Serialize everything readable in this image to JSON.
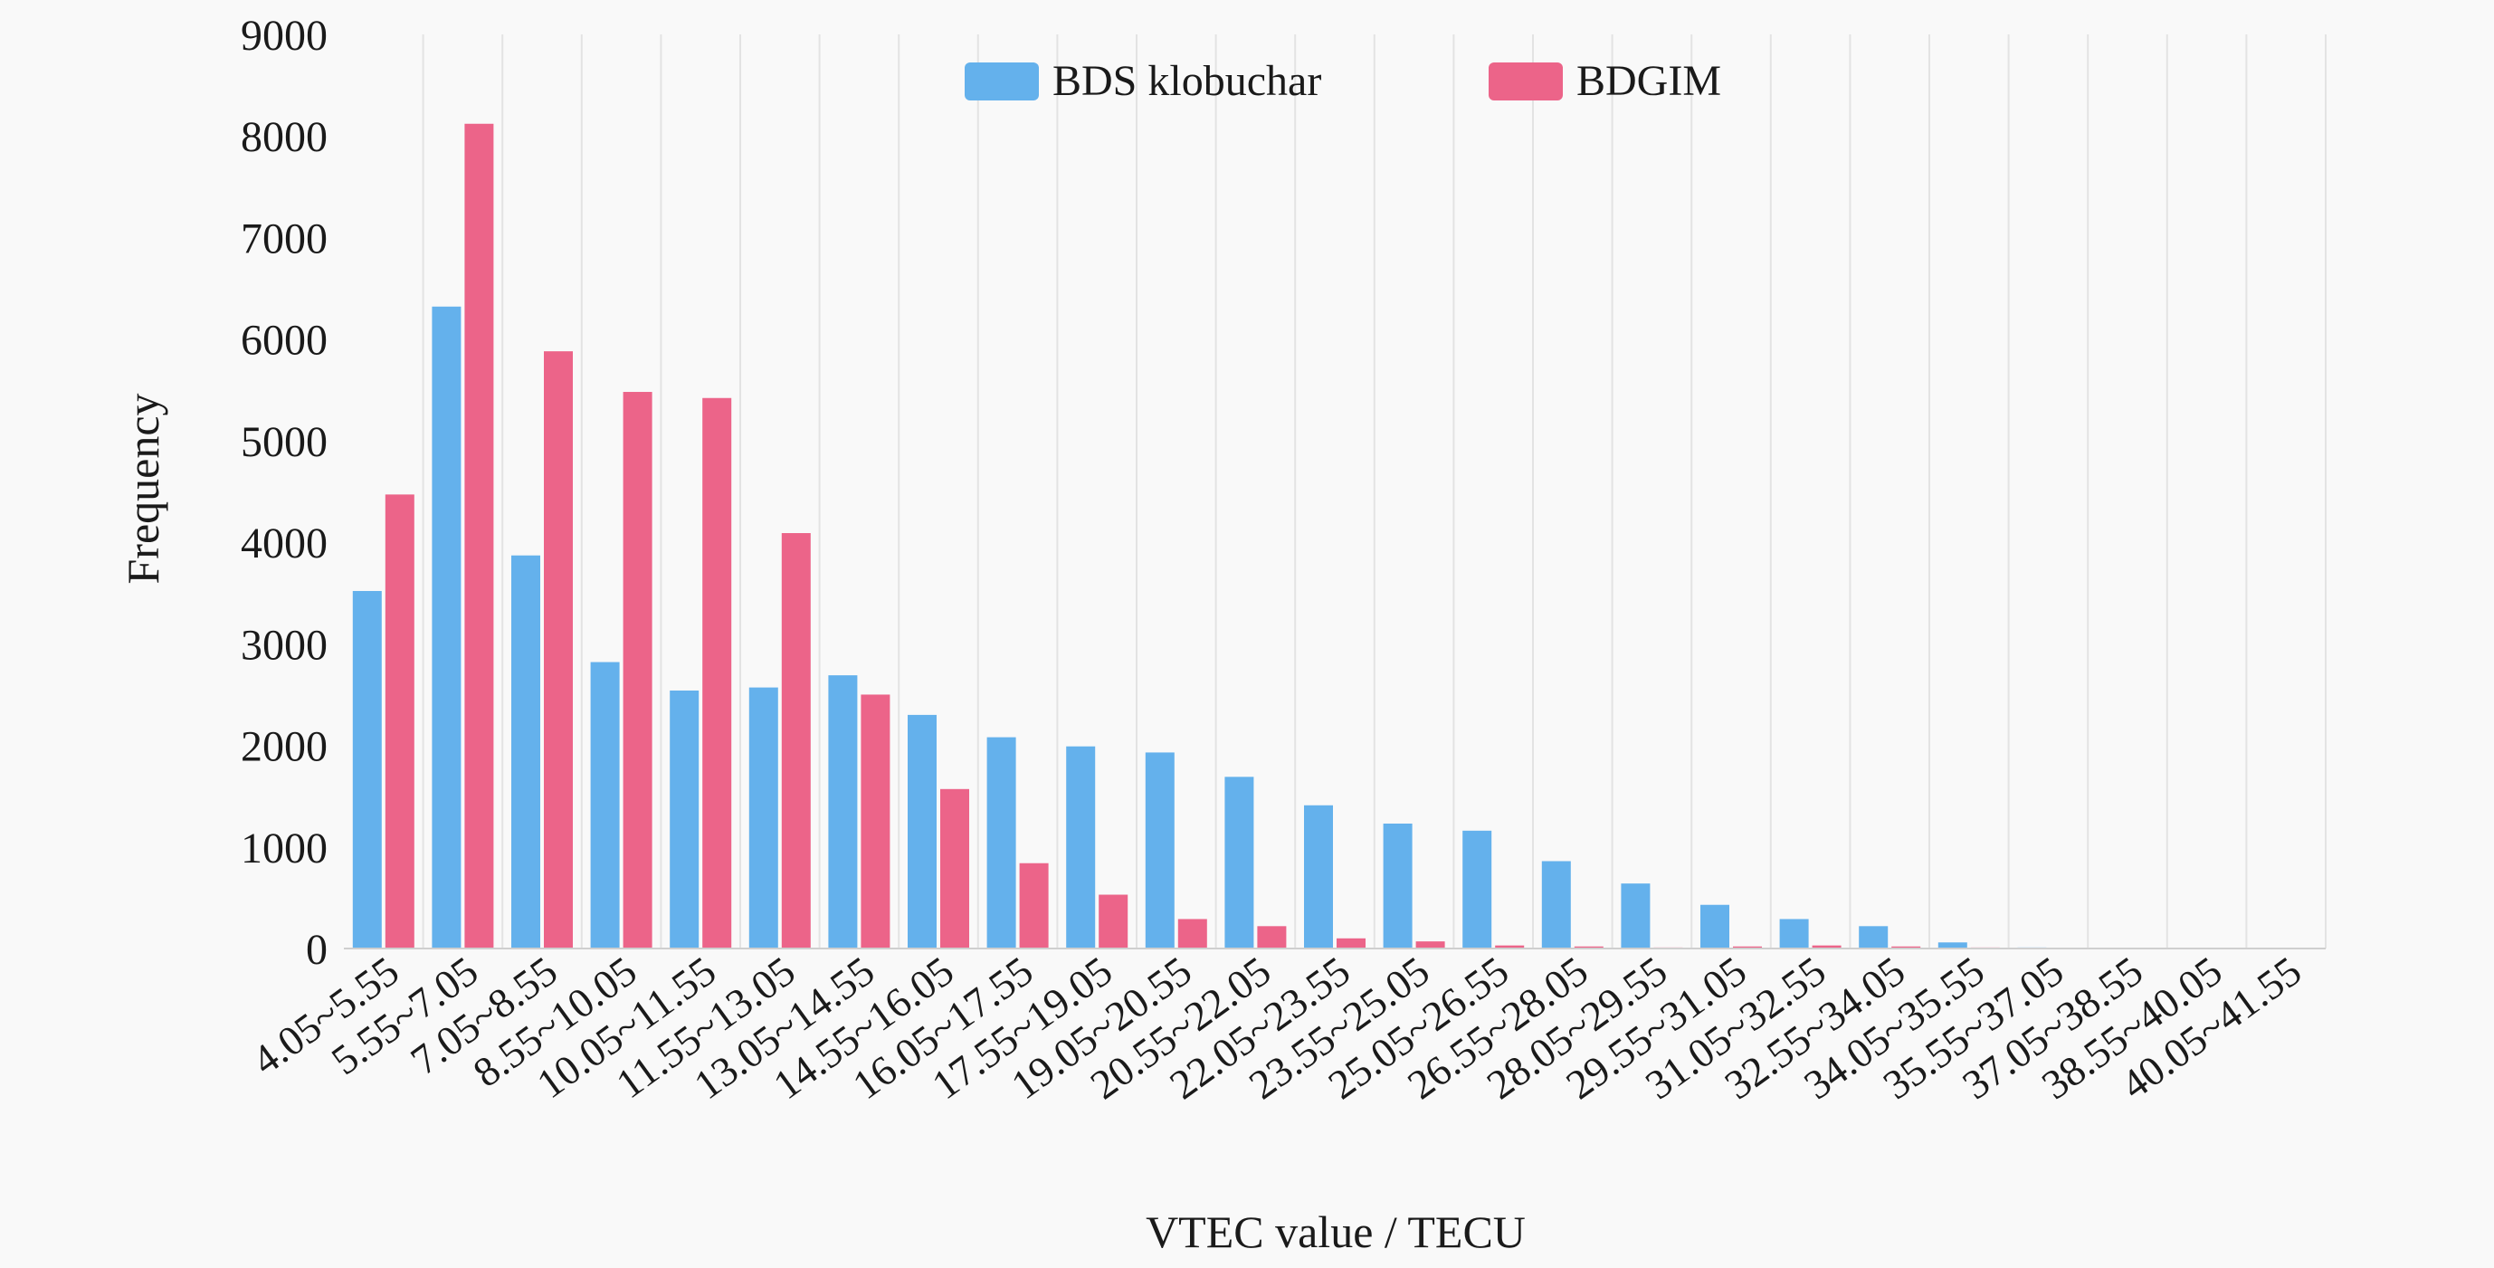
{
  "chart_data": {
    "type": "bar",
    "title": "",
    "xlabel": "VTEC value / TECU",
    "ylabel": "Frequency",
    "ylim": [
      0,
      9000
    ],
    "yticks": [
      "0",
      "1000",
      "2000",
      "3000",
      "4000",
      "5000",
      "6000",
      "7000",
      "8000",
      "9000"
    ],
    "grid": "vertical lines only",
    "legend_position": "top-center",
    "categories": [
      "4.05~5.55",
      "5.55~7.05",
      "7.05~8.55",
      "8.55~10.05",
      "10.05~11.55",
      "11.55~13.05",
      "13.05~14.55",
      "14.55~16.05",
      "16.05~17.55",
      "17.55~19.05",
      "19.05~20.55",
      "20.55~22.05",
      "22.05~23.55",
      "23.55~25.05",
      "25.05~26.55",
      "26.55~28.05",
      "28.05~29.55",
      "29.55~31.05",
      "31.05~32.55",
      "32.55~34.05",
      "34.05~35.55",
      "35.55~37.05",
      "37.05~38.55",
      "38.55~40.05",
      "40.05~41.55"
    ],
    "series": [
      {
        "name": "BDS klobuchar",
        "color": "#64b1ec",
        "values": [
          3520,
          6320,
          3870,
          2820,
          2540,
          2570,
          2690,
          2300,
          2080,
          1990,
          1930,
          1690,
          1410,
          1230,
          1160,
          860,
          640,
          430,
          290,
          220,
          60,
          10,
          5,
          5,
          5
        ]
      },
      {
        "name": "BDGIM",
        "color": "#ec6489",
        "values": [
          4470,
          8120,
          5880,
          5480,
          5420,
          4090,
          2500,
          1570,
          840,
          530,
          290,
          220,
          100,
          70,
          30,
          20,
          10,
          20,
          30,
          20,
          10,
          5,
          5,
          5,
          5
        ]
      }
    ]
  }
}
